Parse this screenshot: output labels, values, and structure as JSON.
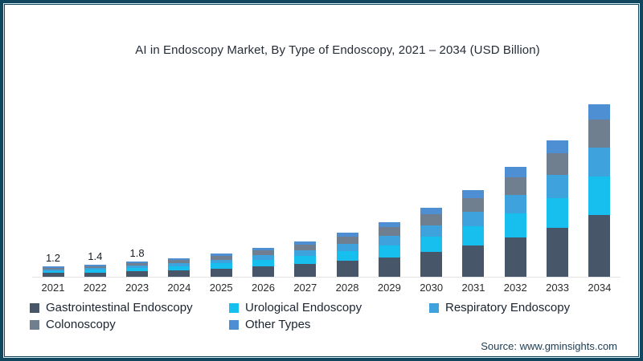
{
  "title": "AI in Endoscopy Market, By Type of Endoscopy, 2021 – 2034 (USD Billion)",
  "source": "Source: www.gminsights.com",
  "frame_color": "#11465f",
  "chart_data": {
    "type": "bar",
    "stacked": true,
    "title": "AI in Endoscopy Market, By Type of Endoscopy, 2021 – 2034 (USD Billion)",
    "unit": "USD Billion",
    "legend_position": "bottom",
    "grid": "off",
    "y_axis_visible": false,
    "categories": [
      "2021",
      "2022",
      "2023",
      "2024",
      "2025",
      "2026",
      "2027",
      "2028",
      "2029",
      "2030",
      "2031",
      "2032",
      "2033",
      "2034"
    ],
    "totals": [
      1.2,
      1.4,
      1.8,
      2.2,
      2.7,
      3.4,
      4.2,
      5.2,
      6.4,
      8.1,
      10.2,
      12.9,
      16.0,
      20.3
    ],
    "value_labels": [
      "1.2",
      "1.4",
      "1.8",
      "",
      "",
      "",
      "",
      "",
      "",
      "",
      "",
      "",
      "",
      ""
    ],
    "series": [
      {
        "name": "Gastrointestinal Endoscopy",
        "color": "#475769",
        "values": [
          0.43,
          0.5,
          0.65,
          0.79,
          0.97,
          1.22,
          1.51,
          1.87,
          2.3,
          2.92,
          3.67,
          4.64,
          5.76,
          7.31
        ]
      },
      {
        "name": "Urological Endoscopy",
        "color": "#17bfee",
        "values": [
          0.26,
          0.31,
          0.4,
          0.48,
          0.59,
          0.75,
          0.92,
          1.14,
          1.41,
          1.78,
          2.24,
          2.84,
          3.52,
          4.47
        ]
      },
      {
        "name": "Respiratory Endoscopy",
        "color": "#3ea2dc",
        "values": [
          0.2,
          0.24,
          0.31,
          0.37,
          0.46,
          0.58,
          0.71,
          0.88,
          1.09,
          1.38,
          1.73,
          2.19,
          2.72,
          3.45
        ]
      },
      {
        "name": "Colonoscopy",
        "color": "#6f7f90",
        "values": [
          0.19,
          0.22,
          0.29,
          0.35,
          0.43,
          0.54,
          0.67,
          0.83,
          1.02,
          1.3,
          1.63,
          2.06,
          2.56,
          3.25
        ]
      },
      {
        "name": "Other Types",
        "color": "#4e8ed3",
        "values": [
          0.11,
          0.13,
          0.16,
          0.2,
          0.24,
          0.31,
          0.38,
          0.47,
          0.58,
          0.73,
          0.92,
          1.16,
          1.44,
          1.83
        ]
      }
    ]
  }
}
